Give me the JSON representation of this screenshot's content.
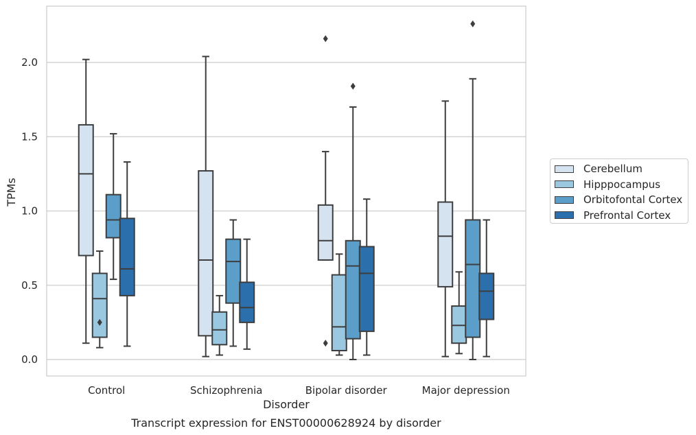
{
  "chart_data": {
    "type": "box",
    "caption": "Transcript expression for ENST00000628924 by disorder",
    "xlabel": "Disorder",
    "ylabel": "TPMs",
    "ylim": [
      -0.11,
      2.37
    ],
    "yticks": [
      "0.0",
      "0.5",
      "1.0",
      "1.5",
      "2.0"
    ],
    "ytick_values": [
      0.0,
      0.5,
      1.0,
      1.5,
      2.0
    ],
    "categories": [
      "Control",
      "Schizophrenia",
      "Bipolar disorder",
      "Major depression"
    ],
    "grid": true,
    "legend_position": "right",
    "series": [
      {
        "name": "Cerebellum",
        "color": "#d5e3f1",
        "boxes": [
          {
            "whisker_low": 0.11,
            "q1": 0.7,
            "median": 1.25,
            "q3": 1.58,
            "whisker_high": 2.02,
            "outliers": []
          },
          {
            "whisker_low": 0.02,
            "q1": 0.16,
            "median": 0.67,
            "q3": 1.27,
            "whisker_high": 2.04,
            "outliers": []
          },
          {
            "whisker_low": 0.67,
            "q1": 0.67,
            "median": 0.8,
            "q3": 1.04,
            "whisker_high": 1.4,
            "outliers": [
              2.16,
              0.11
            ]
          },
          {
            "whisker_low": 0.02,
            "q1": 0.49,
            "median": 0.83,
            "q3": 1.06,
            "whisker_high": 1.74,
            "outliers": []
          }
        ]
      },
      {
        "name": "Hipppocampus",
        "color": "#9ac8e0",
        "boxes": [
          {
            "whisker_low": 0.08,
            "q1": 0.15,
            "median": 0.41,
            "q3": 0.58,
            "whisker_high": 0.73,
            "outliers": [
              0.25
            ]
          },
          {
            "whisker_low": 0.03,
            "q1": 0.1,
            "median": 0.2,
            "q3": 0.32,
            "whisker_high": 0.43,
            "outliers": []
          },
          {
            "whisker_low": 0.03,
            "q1": 0.06,
            "median": 0.22,
            "q3": 0.57,
            "whisker_high": 0.71,
            "outliers": []
          },
          {
            "whisker_low": 0.04,
            "q1": 0.11,
            "median": 0.23,
            "q3": 0.36,
            "whisker_high": 0.59,
            "outliers": []
          }
        ]
      },
      {
        "name": "Orbitofontal Cortex",
        "color": "#5a9ec9",
        "boxes": [
          {
            "whisker_low": 0.54,
            "q1": 0.82,
            "median": 0.94,
            "q3": 1.11,
            "whisker_high": 1.52,
            "outliers": []
          },
          {
            "whisker_low": 0.09,
            "q1": 0.38,
            "median": 0.66,
            "q3": 0.81,
            "whisker_high": 0.94,
            "outliers": []
          },
          {
            "whisker_low": 0.0,
            "q1": 0.14,
            "median": 0.63,
            "q3": 0.8,
            "whisker_high": 1.7,
            "outliers": [
              1.84
            ]
          },
          {
            "whisker_low": 0.0,
            "q1": 0.15,
            "median": 0.64,
            "q3": 0.94,
            "whisker_high": 1.89,
            "outliers": [
              2.26
            ]
          }
        ]
      },
      {
        "name": "Prefrontal Cortex",
        "color": "#2c6fad",
        "boxes": [
          {
            "whisker_low": 0.09,
            "q1": 0.43,
            "median": 0.61,
            "q3": 0.95,
            "whisker_high": 1.33,
            "outliers": []
          },
          {
            "whisker_low": 0.07,
            "q1": 0.25,
            "median": 0.35,
            "q3": 0.52,
            "whisker_high": 0.81,
            "outliers": []
          },
          {
            "whisker_low": 0.03,
            "q1": 0.19,
            "median": 0.58,
            "q3": 0.76,
            "whisker_high": 1.08,
            "outliers": []
          },
          {
            "whisker_low": 0.02,
            "q1": 0.27,
            "median": 0.46,
            "q3": 0.58,
            "whisker_high": 0.94,
            "outliers": []
          }
        ]
      }
    ]
  }
}
